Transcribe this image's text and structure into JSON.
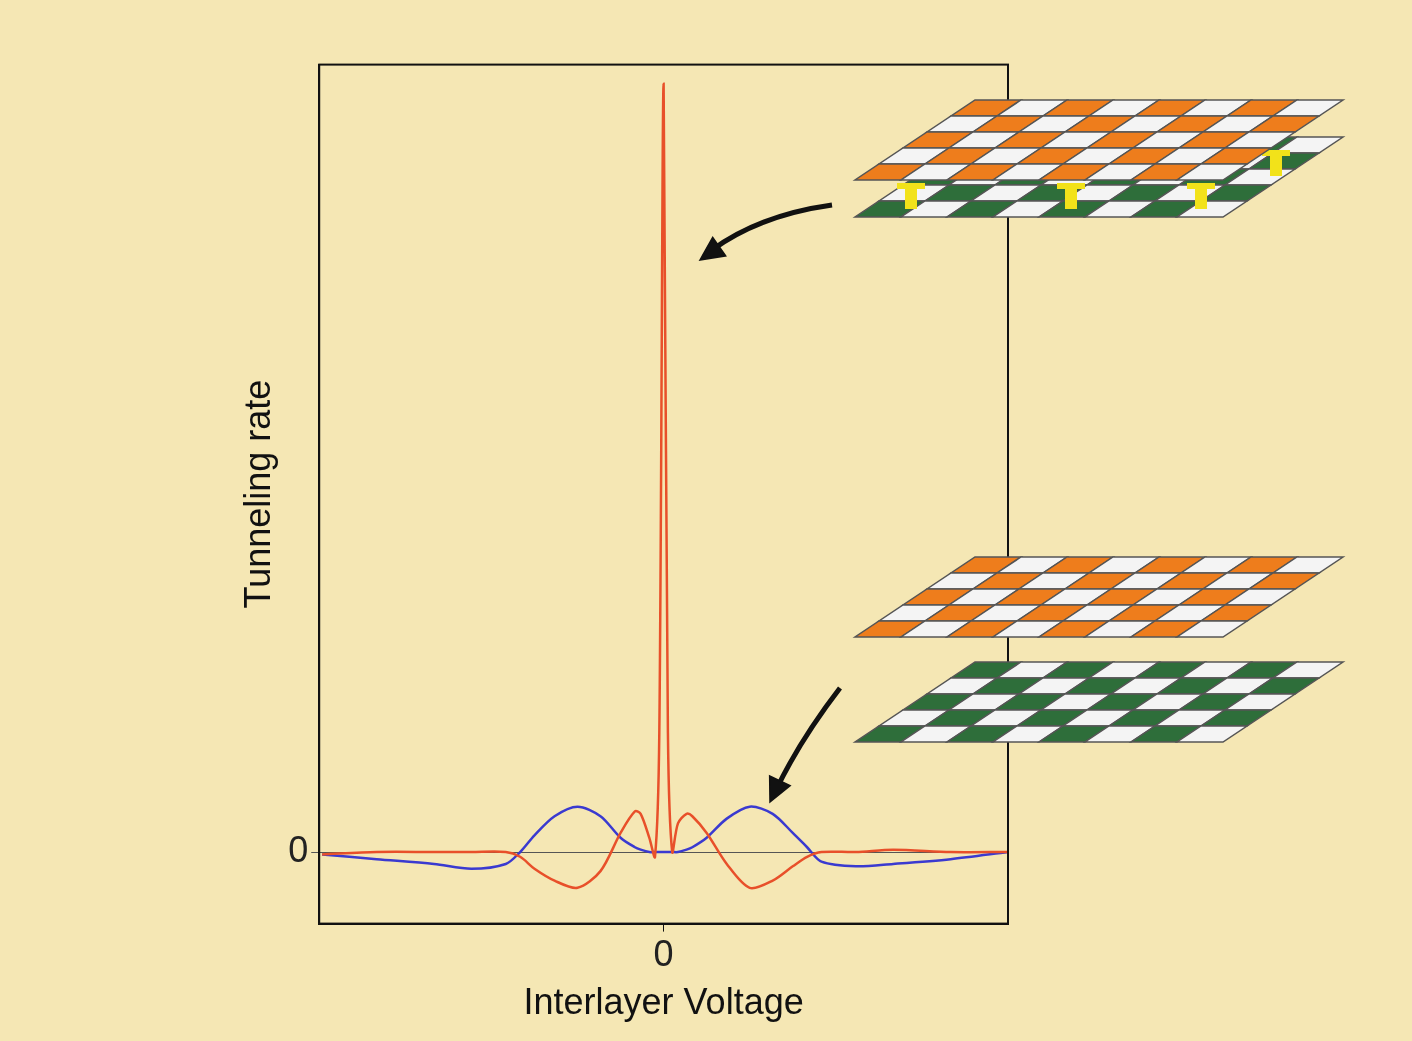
{
  "chart_data": {
    "type": "line",
    "x_label": "Interlayer Voltage",
    "y_label": "Tunneling rate",
    "x": [
      -1.19,
      -1.0,
      -0.8,
      -0.67,
      -0.55,
      -0.5,
      -0.45,
      -0.38,
      -0.3,
      -0.22,
      -0.15,
      -0.1,
      -0.08,
      -0.05,
      -0.03,
      -0.015,
      0,
      0.015,
      0.03,
      0.05,
      0.08,
      0.1,
      0.15,
      0.22,
      0.3,
      0.38,
      0.45,
      0.5,
      0.55,
      0.67,
      0.8,
      1.0,
      1.2
    ],
    "series": [
      {
        "color": "#e8502a",
        "values": [
          -0.01,
          0,
          0,
          0,
          0,
          -0.02,
          -0.07,
          -0.12,
          -0.15,
          -0.08,
          0.08,
          0.17,
          0.16,
          0.06,
          -0.02,
          0.5,
          3.22,
          0.5,
          0,
          0.12,
          0.16,
          0.15,
          0.08,
          -0.05,
          -0.15,
          -0.12,
          -0.06,
          -0.02,
          0,
          0,
          0.01,
          0,
          0
        ]
      },
      {
        "color": "#3a3ad0",
        "values": [
          -0.01,
          -0.03,
          -0.05,
          -0.07,
          -0.05,
          0,
          0.07,
          0.15,
          0.19,
          0.15,
          0.06,
          0.02,
          0.01,
          0,
          0,
          0,
          0,
          0,
          0,
          0,
          0.01,
          0.02,
          0.06,
          0.14,
          0.19,
          0.16,
          0.08,
          0.02,
          -0.04,
          -0.06,
          -0.05,
          -0.03,
          0
        ]
      }
    ],
    "xlim": [
      -1.2,
      1.2
    ],
    "ylim": [
      -0.3,
      3.3
    ],
    "xticks": [
      0
    ],
    "yticks": [
      0
    ],
    "grid": true
  }
}
